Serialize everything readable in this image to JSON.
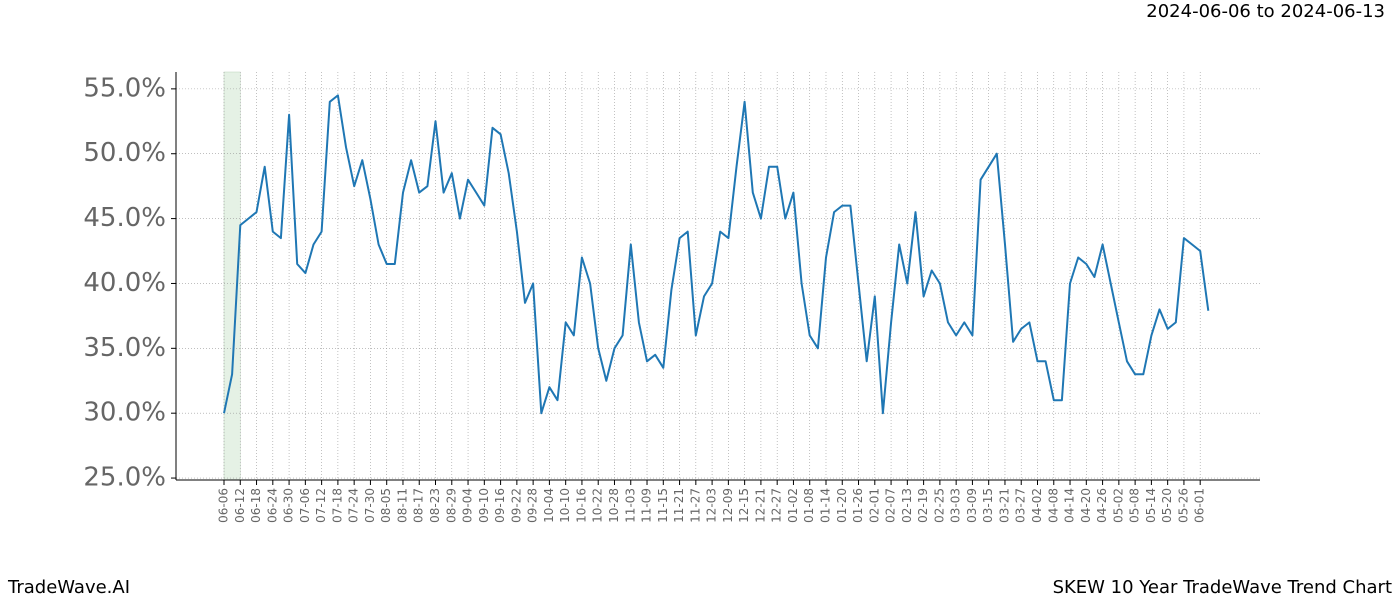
{
  "chart_data": {
    "type": "line",
    "title": "SKEW 10 Year TradeWave Trend Chart",
    "subtitle": "2024-06-06 to 2024-06-13",
    "brand": "TradeWave.AI",
    "highlight": [
      "06-06",
      "06-12"
    ],
    "categories": [
      "06-06",
      null,
      "06-12",
      null,
      "06-18",
      null,
      "06-24",
      null,
      "06-30",
      null,
      "07-06",
      null,
      "07-12",
      null,
      "07-18",
      null,
      "07-24",
      null,
      "07-30",
      null,
      "08-05",
      null,
      "08-11",
      null,
      "08-17",
      null,
      "08-23",
      null,
      "08-29",
      null,
      "09-04",
      null,
      "09-10",
      null,
      "09-16",
      null,
      "09-22",
      null,
      "09-28",
      null,
      "10-04",
      null,
      "10-10",
      null,
      "10-16",
      null,
      "10-22",
      null,
      "10-28",
      null,
      "11-03",
      null,
      "11-09",
      null,
      "11-15",
      null,
      "11-21",
      null,
      "11-27",
      null,
      "12-03",
      null,
      "12-09",
      null,
      "12-15",
      null,
      "12-21",
      null,
      "12-27",
      null,
      "01-02",
      null,
      "01-08",
      null,
      "01-14",
      null,
      "01-20",
      null,
      "01-26",
      null,
      "02-01",
      null,
      "02-07",
      null,
      "02-13",
      null,
      "02-19",
      null,
      "02-25",
      null,
      "03-03",
      null,
      "03-09",
      null,
      "03-15",
      null,
      "03-21",
      null,
      "03-27",
      null,
      "04-02",
      null,
      "04-08",
      null,
      "04-14",
      null,
      "04-20",
      null,
      "04-26",
      null,
      "05-02",
      null,
      "05-08",
      null,
      "05-14",
      null,
      "05-20",
      null,
      "05-26",
      null,
      "06-01",
      null
    ],
    "series": [
      {
        "name": "SKEW",
        "color": "#1f77b4",
        "values": [
          30.0,
          33,
          44.5,
          45.0,
          45.5,
          49,
          44,
          43.5,
          53,
          41.5,
          40.8,
          43,
          44,
          54,
          54.5,
          50.5,
          47.5,
          49.5,
          46.5,
          43,
          41.5,
          41.5,
          47,
          49.5,
          47,
          47.5,
          52.5,
          47,
          48.5,
          45,
          48,
          47,
          46,
          52,
          51.5,
          48.5,
          44,
          38.5,
          40,
          30,
          32,
          31,
          37,
          36,
          42,
          40,
          35,
          32.5,
          35,
          36,
          43,
          37,
          34,
          34.5,
          33.5,
          39.5,
          43.5,
          44,
          36,
          39,
          40,
          44,
          43.5,
          49,
          54,
          47,
          45,
          49,
          49,
          45,
          47,
          40,
          36,
          35,
          42,
          45.5,
          46,
          46,
          40,
          34,
          39,
          30,
          37,
          43,
          40,
          45.5,
          39,
          41,
          40,
          37,
          36,
          37,
          36,
          48,
          49,
          50,
          43,
          35.5,
          36.5,
          37,
          34,
          34,
          31,
          31,
          40,
          42,
          41.5,
          40.5,
          43,
          40,
          37,
          34,
          33,
          33,
          36,
          38,
          36.5,
          37,
          43.5,
          43,
          42.5,
          37.9
        ]
      }
    ],
    "ylim": [
      24.85,
      56.3
    ],
    "yticks": [
      {
        "value": 25,
        "label": "25.0%"
      },
      {
        "value": 30,
        "label": "30.0%"
      },
      {
        "value": 35,
        "label": "35.0%"
      },
      {
        "value": 40,
        "label": "40.0%"
      },
      {
        "value": 45,
        "label": "45.0%"
      },
      {
        "value": 50,
        "label": "50.0%"
      },
      {
        "value": 55,
        "label": "55.0%"
      }
    ],
    "grid": true
  }
}
